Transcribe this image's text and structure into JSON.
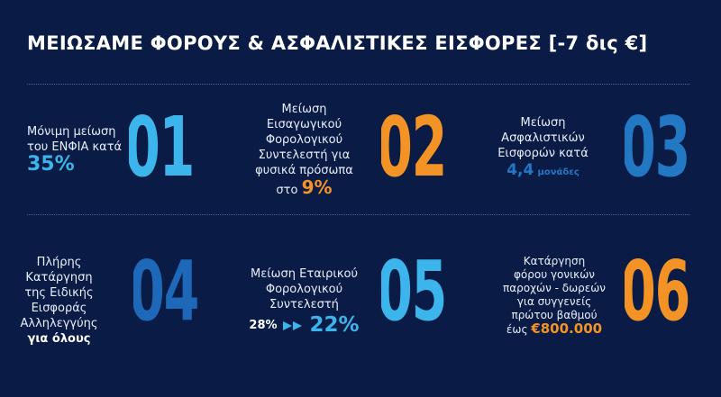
{
  "title": "ΜΕΙΩΣΑΜΕ ΦΟΡΟΥΣ & ΑΣΦΑΛΙΣΤΙΚΕΣ ΕΙΣΦΟΡΕΣ [-7 δις €]",
  "items": [
    {
      "number": "01",
      "lines": [
        "Μόνιμη μείωση",
        "του ΕΝΦΙΑ κατά"
      ],
      "highlight": "35%"
    },
    {
      "number": "02",
      "lines": [
        "Μείωση",
        "Εισαγωγικού",
        "Φορολογικού",
        "Συντελεστή για",
        "φυσικά πρόσωπα"
      ],
      "prefix": "στο",
      "highlight": "9%"
    },
    {
      "number": "03",
      "lines": [
        "Μείωση",
        "Ασφαλιστικών",
        "Εισφορών κατά"
      ],
      "highlight": "4,4",
      "suffix": "μονάδες"
    },
    {
      "number": "04",
      "lines": [
        "Πλήρης",
        "Κατάργηση",
        "της Ειδικής",
        "Εισφοράς",
        "Αλληλεγγύης"
      ],
      "highlight": "για όλους"
    },
    {
      "number": "05",
      "lines": [
        "Μείωση Εταιρικού",
        "Φορολογικού",
        "Συντελεστή"
      ],
      "from": "28%",
      "highlight": "22%"
    },
    {
      "number": "06",
      "lines": [
        "Κατάργηση",
        "φόρου γονικών",
        "παροχών - δωρεών",
        "για συγγενείς",
        "πρώτου βαθμού"
      ],
      "prefix": "έως",
      "highlight": "€800.000"
    }
  ]
}
